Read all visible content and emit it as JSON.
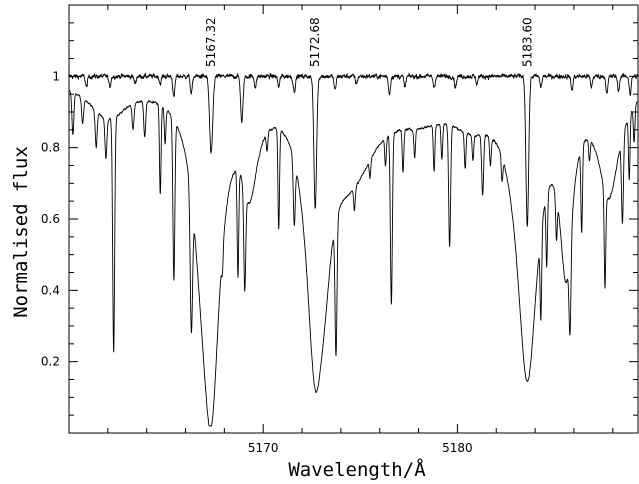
{
  "chart_data": {
    "type": "line",
    "xlabel": "Wavelength/Å",
    "ylabel": "Normalised flux",
    "xlim": [
      5160.0,
      5189.3
    ],
    "ylim": [
      0.0,
      1.2
    ],
    "x_ticks": [
      5170,
      5180
    ],
    "x_tick_labels": [
      "5170",
      "5180"
    ],
    "y_ticks": [
      0.2,
      0.4,
      0.6,
      0.8,
      1.0
    ],
    "y_tick_labels": [
      "0.2",
      "0.4",
      "0.6",
      "0.8",
      "1"
    ],
    "grid": false,
    "legend": "none",
    "line_annotations": [
      {
        "x": 5167.32,
        "label": "5167.32"
      },
      {
        "x": 5172.68,
        "label": "5172.68"
      },
      {
        "x": 5183.6,
        "label": "5183.60"
      }
    ],
    "series": [
      {
        "role": "upper spectrum",
        "continuum": 1.0,
        "noise": 0.012,
        "lines": [
          [
            5160.9,
            0.03,
            0.05
          ],
          [
            5162.1,
            0.03,
            0.05
          ],
          [
            5163.4,
            0.02,
            0.05
          ],
          [
            5164.7,
            0.02,
            0.05
          ],
          [
            5165.4,
            0.06,
            0.05
          ],
          [
            5166.3,
            0.05,
            0.05
          ],
          [
            5167.32,
            0.22,
            0.08
          ],
          [
            5168.9,
            0.13,
            0.06
          ],
          [
            5169.6,
            0.03,
            0.05
          ],
          [
            5170.8,
            0.03,
            0.05
          ],
          [
            5171.6,
            0.04,
            0.06
          ],
          [
            5172.68,
            0.37,
            0.07
          ],
          [
            5173.7,
            0.04,
            0.05
          ],
          [
            5174.8,
            0.02,
            0.05
          ],
          [
            5176.5,
            0.05,
            0.05
          ],
          [
            5177.3,
            0.03,
            0.05
          ],
          [
            5178.8,
            0.03,
            0.05
          ],
          [
            5179.9,
            0.03,
            0.05
          ],
          [
            5181.0,
            0.02,
            0.05
          ],
          [
            5183.6,
            0.42,
            0.07
          ],
          [
            5184.3,
            0.03,
            0.05
          ],
          [
            5185.9,
            0.04,
            0.05
          ],
          [
            5186.9,
            0.03,
            0.05
          ],
          [
            5187.7,
            0.05,
            0.05
          ],
          [
            5188.3,
            0.04,
            0.05
          ],
          [
            5188.9,
            0.05,
            0.05
          ]
        ]
      },
      {
        "role": "lower spectrum",
        "continuum": 1.0,
        "noise": 0.006,
        "broad_lines": [
          [
            5167.32,
            0.83,
            0.55
          ],
          [
            5172.68,
            0.7,
            0.55
          ],
          [
            5183.6,
            0.8,
            0.65
          ],
          [
            5173.2,
            0.17,
            0.42
          ],
          [
            5166.8,
            0.22,
            0.55
          ],
          [
            5169.3,
            0.24,
            0.5
          ],
          [
            5185.6,
            0.46,
            0.4
          ],
          [
            5174.6,
            0.22,
            1.5
          ],
          [
            5187.8,
            0.3,
            0.65
          ],
          [
            5162.0,
            0.1,
            1.2
          ],
          [
            5178.0,
            0.07,
            1.8
          ],
          [
            5180.7,
            0.08,
            1.3
          ]
        ],
        "lines": [
          [
            5160.2,
            0.12,
            0.05
          ],
          [
            5160.7,
            0.07,
            0.05
          ],
          [
            5161.4,
            0.1,
            0.05
          ],
          [
            5161.9,
            0.11,
            0.05
          ],
          [
            5162.3,
            0.66,
            0.05
          ],
          [
            5163.3,
            0.07,
            0.05
          ],
          [
            5163.9,
            0.1,
            0.05
          ],
          [
            5164.7,
            0.25,
            0.04
          ],
          [
            5164.95,
            0.1,
            0.04
          ],
          [
            5165.4,
            0.45,
            0.05
          ],
          [
            5166.3,
            0.38,
            0.06
          ],
          [
            5167.9,
            0.06,
            0.04
          ],
          [
            5168.7,
            0.3,
            0.04
          ],
          [
            5169.05,
            0.28,
            0.05
          ],
          [
            5170.2,
            0.05,
            0.04
          ],
          [
            5170.8,
            0.28,
            0.04
          ],
          [
            5171.6,
            0.18,
            0.05
          ],
          [
            5173.75,
            0.38,
            0.05
          ],
          [
            5174.7,
            0.06,
            0.04
          ],
          [
            5175.5,
            0.05,
            0.04
          ],
          [
            5176.3,
            0.08,
            0.04
          ],
          [
            5176.6,
            0.48,
            0.05
          ],
          [
            5177.2,
            0.12,
            0.04
          ],
          [
            5177.8,
            0.08,
            0.04
          ],
          [
            5178.8,
            0.13,
            0.04
          ],
          [
            5179.2,
            0.1,
            0.04
          ],
          [
            5179.6,
            0.34,
            0.05
          ],
          [
            5180.4,
            0.1,
            0.04
          ],
          [
            5180.8,
            0.07,
            0.04
          ],
          [
            5181.3,
            0.17,
            0.05
          ],
          [
            5181.7,
            0.08,
            0.04
          ],
          [
            5182.3,
            0.07,
            0.04
          ],
          [
            5184.3,
            0.24,
            0.04
          ],
          [
            5184.6,
            0.2,
            0.04
          ],
          [
            5185.1,
            0.12,
            0.04
          ],
          [
            5185.8,
            0.25,
            0.05
          ],
          [
            5186.4,
            0.24,
            0.04
          ],
          [
            5186.8,
            0.06,
            0.04
          ],
          [
            5187.6,
            0.27,
            0.04
          ],
          [
            5188.5,
            0.24,
            0.05
          ],
          [
            5188.85,
            0.18,
            0.04
          ],
          [
            5189.1,
            0.1,
            0.04
          ]
        ]
      }
    ]
  }
}
